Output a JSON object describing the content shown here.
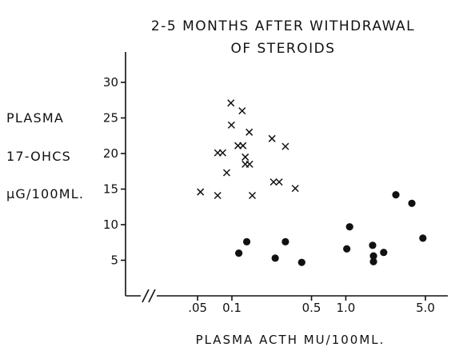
{
  "chart_data": {
    "type": "scatter",
    "title": [
      "2-5 MONTHS AFTER WITHDRAWAL",
      "OF STEROIDS"
    ],
    "ylabel": [
      "PLASMA",
      "17-OHCS",
      "µG/100ML."
    ],
    "xlabel": "PLASMA ACTH MU/100ML.",
    "x_scale": "log",
    "x_axis_break": true,
    "xlim": [
      0.02,
      6.5
    ],
    "ylim": [
      0,
      33
    ],
    "grid": false,
    "x_ticks": [
      {
        "value": 0.05,
        "label": ".05"
      },
      {
        "value": 0.1,
        "label": "0.1"
      },
      {
        "value": 0.5,
        "label": "0.5"
      },
      {
        "value": 1.0,
        "label": "1.0"
      },
      {
        "value": 5.0,
        "label": "5.0"
      }
    ],
    "y_ticks": [
      {
        "value": 5,
        "label": "5"
      },
      {
        "value": 10,
        "label": "10"
      },
      {
        "value": 15,
        "label": "15"
      },
      {
        "value": 20,
        "label": "20"
      },
      {
        "value": 25,
        "label": "25"
      },
      {
        "value": 30,
        "label": "30"
      }
    ],
    "series": [
      {
        "marker": "x",
        "points": [
          [
            0.053,
            14.6
          ],
          [
            0.075,
            14.1
          ],
          [
            0.075,
            20.1
          ],
          [
            0.083,
            20.1
          ],
          [
            0.09,
            17.3
          ],
          [
            0.098,
            27.1
          ],
          [
            0.099,
            24.0
          ],
          [
            0.113,
            21.1
          ],
          [
            0.123,
            26.0
          ],
          [
            0.125,
            21.1
          ],
          [
            0.131,
            19.5
          ],
          [
            0.131,
            18.5
          ],
          [
            0.142,
            23.0
          ],
          [
            0.143,
            18.5
          ],
          [
            0.151,
            14.1
          ],
          [
            0.225,
            22.1
          ],
          [
            0.232,
            16.0
          ],
          [
            0.26,
            16.0
          ],
          [
            0.295,
            21.0
          ],
          [
            0.36,
            15.1
          ]
        ]
      },
      {
        "marker": "filled-circle",
        "points": [
          [
            0.115,
            6.0
          ],
          [
            0.135,
            7.6
          ],
          [
            0.24,
            5.3
          ],
          [
            0.295,
            7.6
          ],
          [
            0.41,
            4.7
          ],
          [
            1.02,
            6.6
          ],
          [
            1.08,
            9.7
          ],
          [
            1.72,
            7.1
          ],
          [
            1.75,
            5.6
          ],
          [
            1.75,
            4.8
          ],
          [
            2.15,
            6.1
          ],
          [
            2.75,
            14.2
          ],
          [
            3.8,
            13.0
          ],
          [
            4.75,
            8.1
          ]
        ]
      }
    ]
  }
}
